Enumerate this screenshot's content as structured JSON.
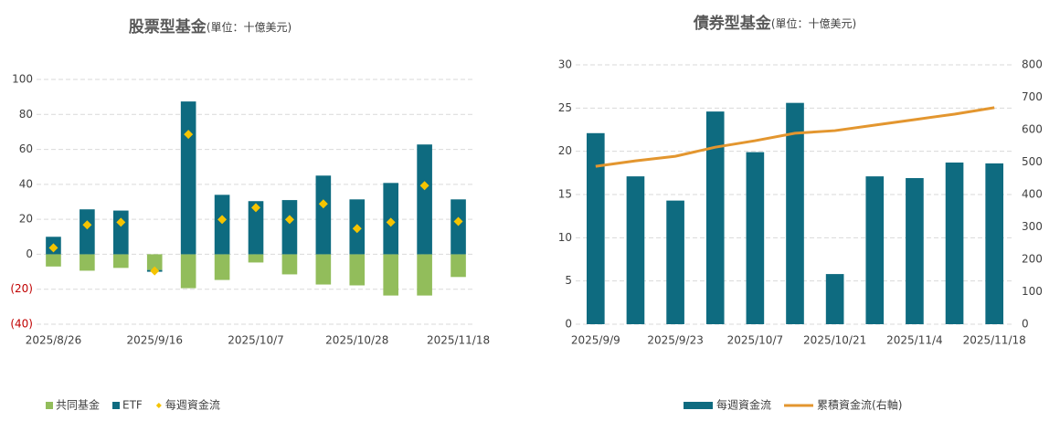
{
  "chart_data": [
    {
      "type": "bar",
      "title": "股票型基金",
      "subtitle": "(單位：十億美元)",
      "stacked": true,
      "grid": true,
      "legend": "bottom",
      "categories": [
        "2025/8/26",
        null,
        null,
        "2025/9/16",
        null,
        null,
        "2025/10/7",
        null,
        null,
        "2025/10/28",
        null,
        null,
        "2025/11/18"
      ],
      "series": [
        {
          "name": "共同基金",
          "type": "bar",
          "color": "#92bd5b",
          "values": [
            -7,
            -9.4,
            -7.8,
            -9,
            -19.4,
            -14.7,
            -4.7,
            -11.5,
            -17.3,
            -17.8,
            -23.6,
            -23.6,
            -13
          ]
        },
        {
          "name": "ETF",
          "type": "bar",
          "color": "#0e6b80",
          "values": [
            10,
            25.7,
            25,
            -1,
            87.4,
            34,
            30.4,
            31,
            45,
            31.4,
            40.8,
            62.8,
            31.4
          ]
        },
        {
          "name": "每週資金流",
          "type": "marker",
          "color": "#f5c400",
          "values": [
            3.7,
            16.8,
            18.3,
            -9.5,
            68.6,
            19.9,
            26.7,
            19.9,
            28.8,
            14.7,
            18.3,
            39.3,
            18.8
          ]
        }
      ],
      "ylim": [
        -40,
        100
      ],
      "yticks": [
        {
          "value": -40,
          "label": "(40)"
        },
        {
          "value": -20,
          "label": "(20)"
        },
        0,
        20,
        40,
        60,
        80,
        100
      ]
    },
    {
      "type": "bar",
      "title": "債券型基金",
      "subtitle": "(單位：十億美元)",
      "grid": true,
      "legend": "bottom",
      "categories": [
        "2025/9/9",
        null,
        "2025/9/23",
        null,
        "2025/10/7",
        null,
        "2025/10/21",
        null,
        "2025/11/4",
        null,
        "2025/11/18"
      ],
      "series": [
        {
          "name": "每週資金流",
          "type": "bar",
          "color": "#0e6b80",
          "values": [
            22.1,
            17.1,
            14.3,
            24.6,
            19.9,
            25.6,
            5.8,
            17.1,
            16.9,
            18.7,
            18.6
          ]
        },
        {
          "name": "累積資金流(右軸)",
          "type": "line",
          "axis": "y2",
          "color": "#e3962f",
          "values": [
            487,
            504,
            518,
            546,
            566,
            589,
            597,
            614,
            631,
            648,
            668
          ]
        }
      ],
      "ylim": [
        0,
        30
      ],
      "yticks": [
        0,
        5,
        10,
        15,
        20,
        25,
        30
      ],
      "y2lim": [
        0,
        800
      ],
      "y2ticks": [
        0,
        100,
        200,
        300,
        400,
        500,
        600,
        700,
        800
      ]
    }
  ]
}
